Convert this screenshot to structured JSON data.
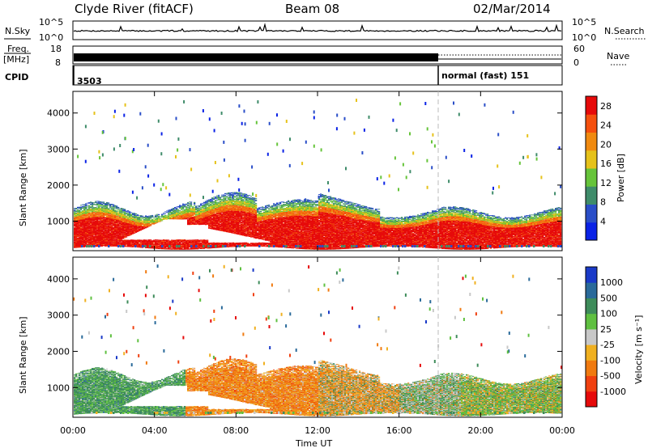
{
  "header": {
    "station": "Clyde River (fitACF)",
    "beam": "Beam 08",
    "date": "02/Mar/2014"
  },
  "nsky_panel": {
    "left_label": "N.Sky",
    "right_label": "N.Search",
    "ticks": [
      "10^5",
      "10^0"
    ]
  },
  "freq_panel": {
    "left_label_1": "Freq.",
    "left_label_2": "[MHz]",
    "left_ticks": [
      "18",
      "8"
    ],
    "right_label": "Nave",
    "right_ticks": [
      "60",
      "0"
    ]
  },
  "cpid_panel": {
    "label": "CPID",
    "program_1": "3503",
    "program_2": "normal (fast) 151"
  },
  "chart_data": [
    {
      "type": "heatmap",
      "name": "power",
      "ylabel": "Slant Range [km]",
      "colorbar_label": "Power [dB]",
      "x_ticks": [
        "00:00",
        "04:00",
        "08:00",
        "12:00",
        "16:00",
        "20:00",
        "00:00"
      ],
      "y_ticks": [
        "1000",
        "2000",
        "3000",
        "4000"
      ],
      "ylim": [
        180,
        4600
      ],
      "colorbar_ticks": [
        "4",
        "8",
        "12",
        "16",
        "20",
        "24",
        "28"
      ],
      "colorbar_range": [
        0,
        30
      ],
      "colors": [
        "#0a22e6",
        "#2a4ec8",
        "#3f8c6a",
        "#66c43a",
        "#e6c21a",
        "#f08a10",
        "#f5500e",
        "#e60a0a"
      ],
      "mode_change_hour": 18.0
    },
    {
      "type": "heatmap",
      "name": "velocity",
      "ylabel": "Slant Range [km]",
      "xlabel": "Time UT",
      "colorbar_label": "Velocity [m s⁻¹]",
      "x_ticks": [
        "00:00",
        "04:00",
        "08:00",
        "12:00",
        "16:00",
        "20:00",
        "00:00"
      ],
      "y_ticks": [
        "1000",
        "2000",
        "3000",
        "4000"
      ],
      "ylim": [
        180,
        4600
      ],
      "colorbar_ticks": [
        "1000",
        "500",
        "100",
        "25",
        "-25",
        "-100",
        "-500",
        "-1000"
      ],
      "colors": [
        "#1a3ac8",
        "#2a6a9a",
        "#3e8c5a",
        "#5fc040",
        "#c8c8c8",
        "#f0b020",
        "#f07a10",
        "#f04010",
        "#e60a0a"
      ],
      "mode_change_hour": 18.0
    }
  ]
}
